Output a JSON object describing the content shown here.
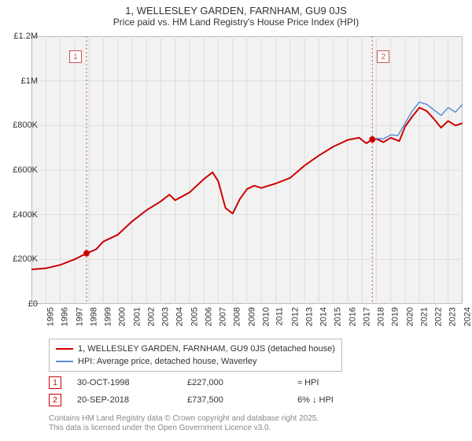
{
  "title": "1, WELLESLEY GARDEN, FARNHAM, GU9 0JS",
  "subtitle": "Price paid vs. HM Land Registry's House Price Index (HPI)",
  "chart": {
    "type": "line",
    "background_color": "#f2f2f2",
    "grid_color": "#dddddd",
    "axis_color": "#999999",
    "ylim": [
      0,
      1200000
    ],
    "ytick_step": 200000,
    "ytick_labels": [
      "£0",
      "£200K",
      "£400K",
      "£600K",
      "£800K",
      "£1M",
      "£1.2M"
    ],
    "xlim": [
      1995,
      2025
    ],
    "xticks": [
      1995,
      1996,
      1997,
      1998,
      1999,
      2000,
      2001,
      2002,
      2003,
      2004,
      2005,
      2006,
      2007,
      2008,
      2009,
      2010,
      2011,
      2012,
      2013,
      2014,
      2015,
      2016,
      2017,
      2018,
      2019,
      2020,
      2021,
      2022,
      2023,
      2024,
      2025
    ],
    "series": [
      {
        "name": "1, WELLESLEY GARDEN, FARNHAM, GU9 0JS (detached house)",
        "color": "#cc0000",
        "line_width": 2,
        "points": [
          [
            1995,
            155000
          ],
          [
            1996,
            160000
          ],
          [
            1997,
            175000
          ],
          [
            1998,
            200000
          ],
          [
            1998.83,
            227000
          ],
          [
            1999.5,
            245000
          ],
          [
            2000,
            280000
          ],
          [
            2001,
            310000
          ],
          [
            2002,
            370000
          ],
          [
            2003,
            420000
          ],
          [
            2004,
            460000
          ],
          [
            2004.6,
            490000
          ],
          [
            2005,
            465000
          ],
          [
            2006,
            500000
          ],
          [
            2007,
            560000
          ],
          [
            2007.6,
            590000
          ],
          [
            2008,
            550000
          ],
          [
            2008.5,
            430000
          ],
          [
            2009,
            405000
          ],
          [
            2009.5,
            470000
          ],
          [
            2010,
            515000
          ],
          [
            2010.5,
            530000
          ],
          [
            2011,
            520000
          ],
          [
            2011.5,
            530000
          ],
          [
            2012,
            540000
          ],
          [
            2013,
            565000
          ],
          [
            2014,
            620000
          ],
          [
            2015,
            665000
          ],
          [
            2016,
            705000
          ],
          [
            2017,
            735000
          ],
          [
            2017.8,
            745000
          ],
          [
            2018.3,
            720000
          ],
          [
            2018.72,
            737500
          ],
          [
            2019,
            740000
          ],
          [
            2019.5,
            725000
          ],
          [
            2020,
            745000
          ],
          [
            2020.6,
            730000
          ],
          [
            2021,
            795000
          ],
          [
            2021.5,
            840000
          ],
          [
            2022,
            880000
          ],
          [
            2022.5,
            865000
          ],
          [
            2023,
            830000
          ],
          [
            2023.5,
            790000
          ],
          [
            2024,
            820000
          ],
          [
            2024.5,
            800000
          ],
          [
            2025,
            810000
          ]
        ]
      },
      {
        "name": "HPI: Average price, detached house, Waverley",
        "color": "#5b8fd6",
        "line_width": 1.5,
        "points": [
          [
            2018.72,
            735000
          ],
          [
            2019,
            742000
          ],
          [
            2019.5,
            740000
          ],
          [
            2020,
            758000
          ],
          [
            2020.5,
            755000
          ],
          [
            2021,
            810000
          ],
          [
            2021.5,
            865000
          ],
          [
            2022,
            905000
          ],
          [
            2022.5,
            895000
          ],
          [
            2023,
            870000
          ],
          [
            2023.5,
            845000
          ],
          [
            2024,
            880000
          ],
          [
            2024.5,
            860000
          ],
          [
            2025,
            895000
          ]
        ]
      }
    ],
    "markers": [
      {
        "x": 1998.83,
        "y": 227000,
        "color": "#cc0000",
        "r": 4
      },
      {
        "x": 2018.72,
        "y": 737500,
        "color": "#cc0000",
        "r": 4
      }
    ],
    "event_lines": [
      {
        "x": 1998.83,
        "color": "#cc5555",
        "label": "1"
      },
      {
        "x": 2018.72,
        "color": "#cc5555",
        "label": "2"
      }
    ],
    "title_fontsize": 13,
    "label_fontsize": 11
  },
  "legend": {
    "items": [
      {
        "color": "#cc0000",
        "label": "1, WELLESLEY GARDEN, FARNHAM, GU9 0JS (detached house)"
      },
      {
        "color": "#5b8fd6",
        "label": "HPI: Average price, detached house, Waverley"
      }
    ]
  },
  "events": [
    {
      "num": "1",
      "color": "#cc0000",
      "date": "30-OCT-1998",
      "price": "£227,000",
      "rel": "≈ HPI"
    },
    {
      "num": "2",
      "color": "#cc0000",
      "date": "20-SEP-2018",
      "price": "£737,500",
      "rel": "6% ↓ HPI"
    }
  ],
  "footer": {
    "line1": "Contains HM Land Registry data © Crown copyright and database right 2025.",
    "line2": "This data is licensed under the Open Government Licence v3.0."
  }
}
